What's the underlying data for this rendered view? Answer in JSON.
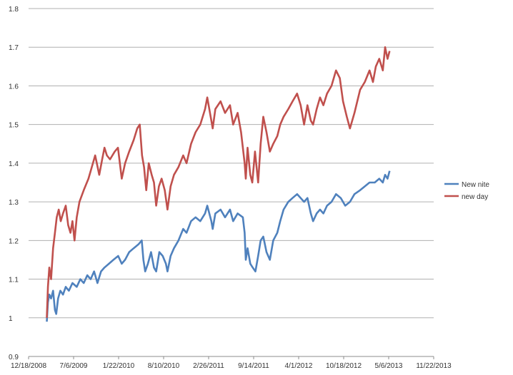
{
  "chart_data": {
    "type": "line",
    "title": "",
    "xlabel": "",
    "ylabel": "",
    "ylim": [
      0.9,
      1.8
    ],
    "yticks": [
      0.9,
      1.0,
      1.1,
      1.2,
      1.3,
      1.4,
      1.5,
      1.6,
      1.7,
      1.8
    ],
    "ytick_labels": [
      "0.9",
      "1",
      "1.1",
      "1.2",
      "1.3",
      "1.4",
      "1.5",
      "1.6",
      "1.7",
      "1.8"
    ],
    "xlim": [
      "2008-12-18",
      "2013-11-22"
    ],
    "xticks": [
      "2008-12-18",
      "2009-07-06",
      "2010-01-22",
      "2010-08-10",
      "2011-02-26",
      "2011-09-14",
      "2012-04-01",
      "2012-10-18",
      "2013-05-06",
      "2013-11-22"
    ],
    "xtick_labels": [
      "12/18/2008",
      "7/6/2009",
      "1/22/2010",
      "8/10/2010",
      "2/26/2011",
      "9/14/2011",
      "4/1/2012",
      "10/18/2012",
      "5/6/2013",
      "11/22/2013"
    ],
    "grid": "horizontal",
    "legend_position": "right",
    "series": [
      {
        "name": "New nite",
        "color": "#4f81bd",
        "points": [
          [
            "2009-03-09",
            0.99
          ],
          [
            "2009-03-14",
            1.04
          ],
          [
            "2009-03-20",
            1.06
          ],
          [
            "2009-03-28",
            1.05
          ],
          [
            "2009-04-06",
            1.07
          ],
          [
            "2009-04-14",
            1.02
          ],
          [
            "2009-04-20",
            1.01
          ],
          [
            "2009-04-28",
            1.05
          ],
          [
            "2009-05-08",
            1.07
          ],
          [
            "2009-05-20",
            1.06
          ],
          [
            "2009-06-01",
            1.08
          ],
          [
            "2009-06-15",
            1.07
          ],
          [
            "2009-07-01",
            1.09
          ],
          [
            "2009-07-20",
            1.08
          ],
          [
            "2009-08-05",
            1.1
          ],
          [
            "2009-08-20",
            1.09
          ],
          [
            "2009-09-05",
            1.11
          ],
          [
            "2009-09-20",
            1.1
          ],
          [
            "2009-10-05",
            1.12
          ],
          [
            "2009-10-20",
            1.09
          ],
          [
            "2009-11-05",
            1.12
          ],
          [
            "2009-11-20",
            1.13
          ],
          [
            "2009-12-10",
            1.14
          ],
          [
            "2009-12-30",
            1.15
          ],
          [
            "2010-01-20",
            1.16
          ],
          [
            "2010-02-05",
            1.14
          ],
          [
            "2010-02-20",
            1.15
          ],
          [
            "2010-03-10",
            1.17
          ],
          [
            "2010-03-30",
            1.18
          ],
          [
            "2010-04-20",
            1.19
          ],
          [
            "2010-05-05",
            1.2
          ],
          [
            "2010-05-12",
            1.15
          ],
          [
            "2010-05-20",
            1.12
          ],
          [
            "2010-06-01",
            1.14
          ],
          [
            "2010-06-15",
            1.17
          ],
          [
            "2010-06-28",
            1.13
          ],
          [
            "2010-07-08",
            1.12
          ],
          [
            "2010-07-22",
            1.17
          ],
          [
            "2010-08-06",
            1.16
          ],
          [
            "2010-08-20",
            1.14
          ],
          [
            "2010-08-27",
            1.12
          ],
          [
            "2010-09-10",
            1.16
          ],
          [
            "2010-09-25",
            1.18
          ],
          [
            "2010-10-15",
            1.2
          ],
          [
            "2010-11-05",
            1.23
          ],
          [
            "2010-11-20",
            1.22
          ],
          [
            "2010-12-10",
            1.25
          ],
          [
            "2010-12-30",
            1.26
          ],
          [
            "2011-01-20",
            1.25
          ],
          [
            "2011-02-10",
            1.27
          ],
          [
            "2011-02-20",
            1.29
          ],
          [
            "2011-03-10",
            1.25
          ],
          [
            "2011-03-16",
            1.23
          ],
          [
            "2011-03-28",
            1.27
          ],
          [
            "2011-04-20",
            1.28
          ],
          [
            "2011-05-10",
            1.26
          ],
          [
            "2011-06-01",
            1.28
          ],
          [
            "2011-06-15",
            1.25
          ],
          [
            "2011-07-05",
            1.27
          ],
          [
            "2011-07-28",
            1.26
          ],
          [
            "2011-08-05",
            1.22
          ],
          [
            "2011-08-10",
            1.15
          ],
          [
            "2011-08-18",
            1.18
          ],
          [
            "2011-08-30",
            1.14
          ],
          [
            "2011-09-10",
            1.13
          ],
          [
            "2011-09-22",
            1.12
          ],
          [
            "2011-10-04",
            1.16
          ],
          [
            "2011-10-15",
            1.2
          ],
          [
            "2011-10-27",
            1.21
          ],
          [
            "2011-11-10",
            1.17
          ],
          [
            "2011-11-25",
            1.15
          ],
          [
            "2011-12-10",
            1.2
          ],
          [
            "2011-12-28",
            1.22
          ],
          [
            "2012-01-10",
            1.25
          ],
          [
            "2012-01-25",
            1.28
          ],
          [
            "2012-02-15",
            1.3
          ],
          [
            "2012-03-05",
            1.31
          ],
          [
            "2012-03-25",
            1.32
          ],
          [
            "2012-04-10",
            1.31
          ],
          [
            "2012-04-25",
            1.3
          ],
          [
            "2012-05-10",
            1.31
          ],
          [
            "2012-05-25",
            1.27
          ],
          [
            "2012-06-04",
            1.25
          ],
          [
            "2012-06-20",
            1.27
          ],
          [
            "2012-07-05",
            1.28
          ],
          [
            "2012-07-20",
            1.27
          ],
          [
            "2012-08-05",
            1.29
          ],
          [
            "2012-08-25",
            1.3
          ],
          [
            "2012-09-14",
            1.32
          ],
          [
            "2012-10-05",
            1.31
          ],
          [
            "2012-10-25",
            1.29
          ],
          [
            "2012-11-15",
            1.3
          ],
          [
            "2012-12-05",
            1.32
          ],
          [
            "2012-12-30",
            1.33
          ],
          [
            "2013-01-20",
            1.34
          ],
          [
            "2013-02-10",
            1.35
          ],
          [
            "2013-03-05",
            1.35
          ],
          [
            "2013-03-25",
            1.36
          ],
          [
            "2013-04-10",
            1.35
          ],
          [
            "2013-04-20",
            1.37
          ],
          [
            "2013-05-01",
            1.36
          ],
          [
            "2013-05-10",
            1.38
          ]
        ]
      },
      {
        "name": "new day",
        "color": "#c0504d",
        "points": [
          [
            "2009-03-09",
            1.0
          ],
          [
            "2009-03-14",
            1.08
          ],
          [
            "2009-03-20",
            1.13
          ],
          [
            "2009-03-28",
            1.1
          ],
          [
            "2009-04-06",
            1.18
          ],
          [
            "2009-04-14",
            1.22
          ],
          [
            "2009-04-22",
            1.26
          ],
          [
            "2009-05-01",
            1.28
          ],
          [
            "2009-05-10",
            1.25
          ],
          [
            "2009-05-20",
            1.27
          ],
          [
            "2009-06-01",
            1.29
          ],
          [
            "2009-06-12",
            1.24
          ],
          [
            "2009-06-22",
            1.22
          ],
          [
            "2009-07-01",
            1.25
          ],
          [
            "2009-07-10",
            1.2
          ],
          [
            "2009-07-20",
            1.26
          ],
          [
            "2009-08-01",
            1.3
          ],
          [
            "2009-08-20",
            1.33
          ],
          [
            "2009-09-10",
            1.36
          ],
          [
            "2009-09-25",
            1.39
          ],
          [
            "2009-10-10",
            1.42
          ],
          [
            "2009-10-28",
            1.37
          ],
          [
            "2009-11-10",
            1.41
          ],
          [
            "2009-11-20",
            1.44
          ],
          [
            "2009-12-01",
            1.42
          ],
          [
            "2009-12-15",
            1.41
          ],
          [
            "2010-01-05",
            1.43
          ],
          [
            "2010-01-19",
            1.44
          ],
          [
            "2010-02-05",
            1.36
          ],
          [
            "2010-02-20",
            1.4
          ],
          [
            "2010-03-10",
            1.43
          ],
          [
            "2010-03-30",
            1.46
          ],
          [
            "2010-04-15",
            1.49
          ],
          [
            "2010-04-26",
            1.5
          ],
          [
            "2010-05-06",
            1.42
          ],
          [
            "2010-05-15",
            1.39
          ],
          [
            "2010-05-25",
            1.33
          ],
          [
            "2010-06-05",
            1.4
          ],
          [
            "2010-06-18",
            1.37
          ],
          [
            "2010-06-28",
            1.35
          ],
          [
            "2010-07-08",
            1.29
          ],
          [
            "2010-07-20",
            1.34
          ],
          [
            "2010-08-01",
            1.36
          ],
          [
            "2010-08-15",
            1.33
          ],
          [
            "2010-08-27",
            1.28
          ],
          [
            "2010-09-10",
            1.34
          ],
          [
            "2010-09-25",
            1.37
          ],
          [
            "2010-10-15",
            1.39
          ],
          [
            "2010-11-05",
            1.42
          ],
          [
            "2010-11-20",
            1.4
          ],
          [
            "2010-12-10",
            1.45
          ],
          [
            "2010-12-30",
            1.48
          ],
          [
            "2011-01-20",
            1.5
          ],
          [
            "2011-02-10",
            1.54
          ],
          [
            "2011-02-20",
            1.57
          ],
          [
            "2011-03-10",
            1.51
          ],
          [
            "2011-03-16",
            1.49
          ],
          [
            "2011-03-28",
            1.54
          ],
          [
            "2011-04-20",
            1.56
          ],
          [
            "2011-05-10",
            1.53
          ],
          [
            "2011-06-01",
            1.55
          ],
          [
            "2011-06-15",
            1.5
          ],
          [
            "2011-07-05",
            1.53
          ],
          [
            "2011-07-20",
            1.48
          ],
          [
            "2011-08-05",
            1.4
          ],
          [
            "2011-08-10",
            1.36
          ],
          [
            "2011-08-18",
            1.44
          ],
          [
            "2011-08-30",
            1.37
          ],
          [
            "2011-09-08",
            1.35
          ],
          [
            "2011-09-20",
            1.43
          ],
          [
            "2011-10-04",
            1.35
          ],
          [
            "2011-10-15",
            1.45
          ],
          [
            "2011-10-27",
            1.52
          ],
          [
            "2011-11-10",
            1.48
          ],
          [
            "2011-11-25",
            1.43
          ],
          [
            "2011-12-10",
            1.45
          ],
          [
            "2011-12-28",
            1.47
          ],
          [
            "2012-01-10",
            1.5
          ],
          [
            "2012-01-25",
            1.52
          ],
          [
            "2012-02-15",
            1.54
          ],
          [
            "2012-03-05",
            1.56
          ],
          [
            "2012-03-25",
            1.58
          ],
          [
            "2012-04-10",
            1.55
          ],
          [
            "2012-04-25",
            1.5
          ],
          [
            "2012-05-10",
            1.55
          ],
          [
            "2012-05-25",
            1.51
          ],
          [
            "2012-06-04",
            1.5
          ],
          [
            "2012-06-20",
            1.54
          ],
          [
            "2012-07-05",
            1.57
          ],
          [
            "2012-07-20",
            1.55
          ],
          [
            "2012-08-05",
            1.58
          ],
          [
            "2012-08-25",
            1.6
          ],
          [
            "2012-09-14",
            1.64
          ],
          [
            "2012-10-01",
            1.62
          ],
          [
            "2012-10-15",
            1.56
          ],
          [
            "2012-11-01",
            1.52
          ],
          [
            "2012-11-15",
            1.49
          ],
          [
            "2012-12-05",
            1.53
          ],
          [
            "2012-12-30",
            1.59
          ],
          [
            "2013-01-20",
            1.61
          ],
          [
            "2013-02-10",
            1.64
          ],
          [
            "2013-02-25",
            1.61
          ],
          [
            "2013-03-10",
            1.65
          ],
          [
            "2013-03-25",
            1.67
          ],
          [
            "2013-04-10",
            1.64
          ],
          [
            "2013-04-20",
            1.7
          ],
          [
            "2013-05-01",
            1.67
          ],
          [
            "2013-05-10",
            1.69
          ]
        ]
      }
    ]
  }
}
